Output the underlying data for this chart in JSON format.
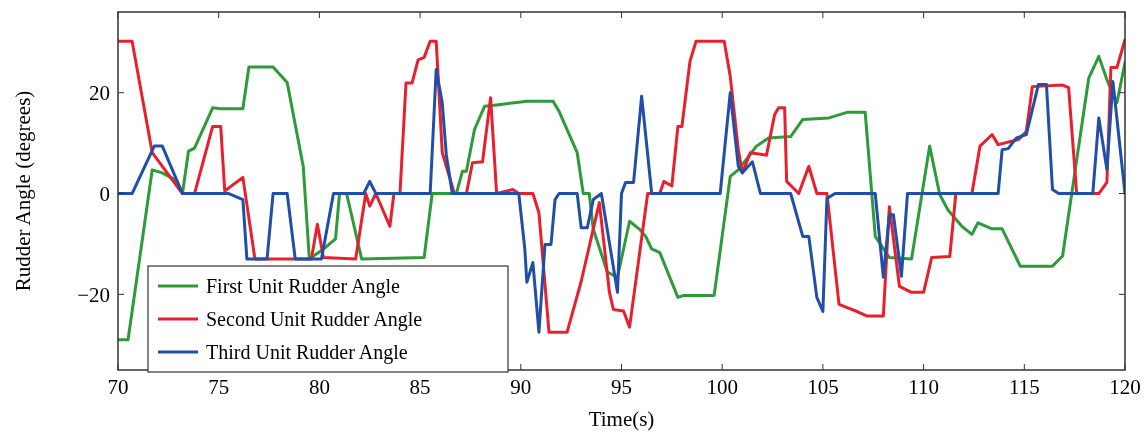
{
  "chart_data": {
    "type": "line",
    "xlabel": "Time(s)",
    "ylabel": "Rudder Angle (degrees)",
    "xlim": [
      70,
      120
    ],
    "xticks": [
      70,
      75,
      80,
      85,
      90,
      95,
      100,
      105,
      110,
      115,
      120
    ],
    "ylim": [
      -35,
      36
    ],
    "yticks": [
      {
        "value": -20,
        "label": "−20"
      },
      0,
      20
    ],
    "grid": false,
    "legend": "bottom left",
    "marker": "none",
    "line_style": "solid",
    "series": [
      {
        "name": "First Unit Rudder Angle",
        "color": "#2e9a3a",
        "x": [
          70,
          70.5,
          71.7,
          72.2,
          72.8,
          73.2,
          73.5,
          73.8,
          74.7,
          75.1,
          76.2,
          76.5,
          77.7,
          78.4,
          79.2,
          79.5,
          80.2,
          80.8,
          81,
          81.35,
          82.1,
          85.2,
          85.6,
          86.8,
          87.1,
          87.3,
          87.7,
          88.2,
          88.9,
          90.3,
          91.6,
          91.9,
          92.8,
          93.1,
          93.4,
          93.6,
          94.3,
          94.8,
          95.4,
          95.9,
          96.2,
          96.5,
          96.9,
          97.8,
          98.1,
          99.6,
          100.4,
          100.8,
          101.7,
          102.3,
          103.4,
          104,
          105.3,
          106.2,
          107.1,
          107.6,
          108.3,
          109.4,
          110.3,
          110.8,
          111.2,
          111.9,
          112.4,
          112.7,
          113.4,
          113.9,
          114.8,
          116.4,
          116.9,
          118.2,
          118.7,
          119.1,
          119.6,
          120
        ],
        "values": [
          -29,
          -29,
          4.7,
          4.1,
          2.8,
          0,
          8.4,
          9,
          17,
          16.8,
          16.8,
          25.1,
          25.1,
          22,
          5.3,
          -13,
          -11,
          -9,
          0,
          0,
          -13,
          -12.7,
          0,
          0,
          4.4,
          4.4,
          12.7,
          17.3,
          17.6,
          18.3,
          18.3,
          16.3,
          8.1,
          0,
          0,
          -7.1,
          -15.6,
          -16.6,
          -5.5,
          -7.1,
          -8.5,
          -11,
          -11.7,
          -20.6,
          -20.2,
          -20.2,
          3.4,
          4.7,
          9.4,
          11,
          11.3,
          14.7,
          15,
          16.1,
          16.1,
          -8.5,
          -12.7,
          -13,
          9.4,
          -0.2,
          -3.2,
          -6.5,
          -8.1,
          -5.8,
          -7,
          -7,
          -14.4,
          -14.4,
          -12.4,
          22.9,
          27.2,
          22.6,
          18,
          26
        ]
      },
      {
        "name": "Second Unit Rudder Angle",
        "color": "#e8202e",
        "x": [
          70,
          70.7,
          71.7,
          73.2,
          73.8,
          74.7,
          75.1,
          75.3,
          76.2,
          76.8,
          79.6,
          79.9,
          80.2,
          81.8,
          82.3,
          82.5,
          82.8,
          83.5,
          83.7,
          84,
          84.3,
          84.6,
          84.9,
          85.2,
          85.5,
          85.8,
          86.1,
          86.7,
          87.3,
          87.6,
          88.1,
          88.5,
          88.8,
          89.6,
          89.9,
          90.6,
          90.9,
          91.4,
          92.3,
          93,
          93.9,
          94.4,
          94.6,
          95.1,
          95.4,
          96.3,
          96.9,
          97.1,
          97.5,
          97.8,
          98,
          98.4,
          98.7,
          100.1,
          100.4,
          100.8,
          101,
          101.4,
          102.2,
          102.6,
          102.8,
          103.1,
          103.2,
          103.8,
          104.3,
          104.7,
          105.2,
          105.8,
          106.7,
          107.2,
          108,
          108.3,
          108.8,
          109.4,
          110,
          110.4,
          111.3,
          111.6,
          112.4,
          112.8,
          113.4,
          113.7,
          114.7,
          115.1,
          115.4,
          116.9,
          117.2,
          117.6,
          118.7,
          119.1,
          119.3,
          119.6,
          120
        ],
        "values": [
          30.2,
          30.2,
          8.1,
          0,
          0,
          13.3,
          13.3,
          0.5,
          3.2,
          -13,
          -13,
          -6.1,
          -12.7,
          -13,
          0,
          -2.5,
          0,
          -6.5,
          0,
          0,
          21.9,
          21.9,
          26.5,
          27,
          30.2,
          30.2,
          8.1,
          0,
          0,
          6.1,
          6.3,
          19,
          0,
          0.8,
          0,
          0,
          -3.8,
          -27.5,
          -27.5,
          -17.4,
          -1.8,
          -19.6,
          -23,
          -23.3,
          -26.5,
          0,
          0,
          2.4,
          1.5,
          13.3,
          13.3,
          26.2,
          30.2,
          30.2,
          23.2,
          8.7,
          4.1,
          8.1,
          7.6,
          15.6,
          17,
          17,
          2.4,
          0,
          5.4,
          0,
          0,
          -22,
          -23.4,
          -24.3,
          -24.3,
          -2.6,
          -18.4,
          -19.6,
          -19.6,
          -12.7,
          -12.5,
          0,
          0,
          9.4,
          11.7,
          9.7,
          10.7,
          12.3,
          21.2,
          21.5,
          21,
          0,
          0,
          2.2,
          25,
          25,
          30.5
        ]
      },
      {
        "name": "Third Unit Rudder Angle",
        "color": "#1f4fa8",
        "x": [
          70,
          70.7,
          71.8,
          72.2,
          73.2,
          75.5,
          76.2,
          76.4,
          77.4,
          77.7,
          78.4,
          78.8,
          80.1,
          80.7,
          82.2,
          82.5,
          82.8,
          85.5,
          85.8,
          86.1,
          86.3,
          86.6,
          89.9,
          90.2,
          90.3,
          90.6,
          90.9,
          91.2,
          91.5,
          91.7,
          91.9,
          92.8,
          93,
          93.3,
          93.6,
          94,
          94.8,
          95,
          95.2,
          95.6,
          96,
          96.5,
          99.9,
          100.4,
          100.8,
          101,
          101.5,
          101.9,
          103.4,
          104,
          104.3,
          104.7,
          105,
          105.2,
          105.6,
          107.6,
          108,
          108.3,
          108.5,
          108.9,
          109.2,
          113.7,
          113.9,
          114.2,
          114.6,
          115.1,
          115.7,
          116.1,
          116.4,
          116.7,
          118.4,
          118.7,
          119.1,
          119.4,
          120
        ],
        "values": [
          0,
          0,
          9.4,
          9.4,
          0,
          0,
          -1.2,
          -13,
          -13,
          0,
          0,
          -13,
          -13,
          0,
          0,
          2.4,
          0,
          0,
          24.6,
          18,
          7.7,
          0,
          0,
          -11,
          -17.6,
          -13.7,
          -27.5,
          -10.1,
          -10.1,
          -1.2,
          0,
          0,
          -6.8,
          -6.8,
          -1.2,
          0,
          -19.6,
          0,
          2.2,
          2.2,
          19.3,
          0,
          0,
          20,
          5.4,
          4.1,
          6.3,
          0,
          0,
          -8.5,
          -8.5,
          -20.6,
          -23.4,
          -1,
          0,
          0,
          -16.6,
          -4.2,
          -4.2,
          -16.4,
          0,
          0,
          8.7,
          8.9,
          11,
          11.7,
          21.6,
          21.6,
          0.8,
          0,
          0,
          15,
          4.8,
          22.2,
          0
        ]
      }
    ]
  }
}
